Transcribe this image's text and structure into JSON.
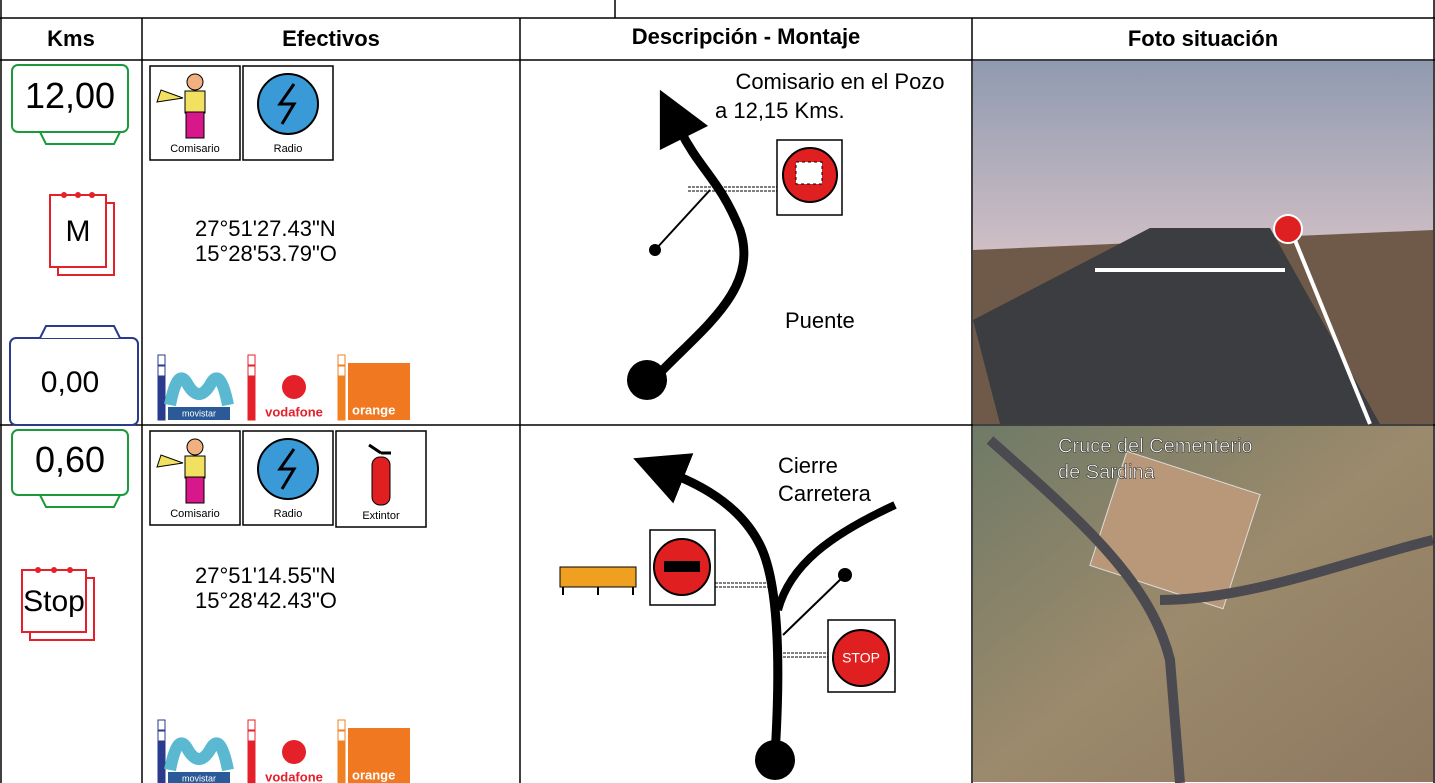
{
  "header": {
    "columns": [
      "Kms",
      "Efectivos",
      "Descripción - Montaje",
      "Foto situación"
    ]
  },
  "rows": [
    {
      "km": "12,00",
      "icon": "M",
      "km_partial": "0,00",
      "effectives": [
        "Comisario",
        "Radio"
      ],
      "coordinates": [
        "27°51'27.43\"N",
        "15°28'53.79\"O"
      ],
      "operators": [
        "movistar",
        "vodafone",
        "orange"
      ],
      "notes": [
        "Comisario en el Pozo",
        "a 12,15 Kms.",
        "Puente"
      ]
    },
    {
      "km": "0,60",
      "icon": "Stop",
      "effectives": [
        "Comisario",
        "Radio",
        "Extintor"
      ],
      "coordinates": [
        "27°51'14.55\"N",
        "15°28'42.43\"O"
      ],
      "operators": [
        "movistar",
        "vodafone",
        "orange"
      ],
      "notes": [
        "Cierre",
        "Carretera"
      ],
      "sign": "STOP",
      "photo_caption": [
        "Cruce del Cementerio",
        "de Sardina"
      ]
    }
  ]
}
